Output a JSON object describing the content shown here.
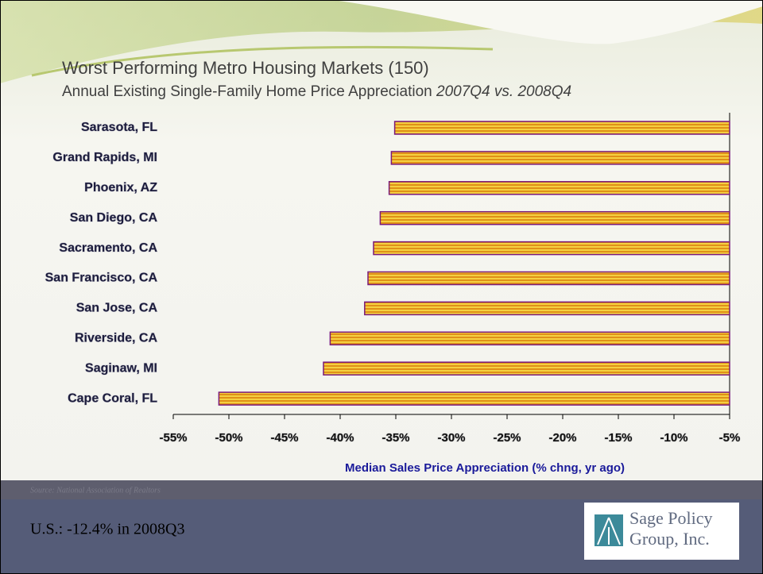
{
  "chart_data": {
    "type": "hbar",
    "title": "Worst Performing Metro Housing Markets (150)",
    "subtitle": "Annual Existing Single-Family Home Price Appreciation",
    "subtitle_period": "2007Q4 vs. 2008Q4",
    "x_label": "Median Sales Price Appreciation (% chng, yr ago)",
    "categories": [
      "Sarasota, FL",
      "Grand Rapids, MI",
      "Phoenix, AZ",
      "San Diego, CA",
      "Sacramento, CA",
      "San Francisco, CA",
      "San Jose, CA",
      "Riverside, CA",
      "Saginaw, MI",
      "Cape Coral, FL"
    ],
    "values": [
      -35.1,
      -35.4,
      -35.6,
      -36.4,
      -37.0,
      -37.5,
      -37.8,
      -40.9,
      -41.5,
      -50.9
    ],
    "color": "#e8a020",
    "xlim": [
      -55,
      -5
    ],
    "xticks": [
      {
        "value": -55,
        "label": "-55%"
      },
      {
        "value": -50,
        "label": "-50%"
      },
      {
        "value": -45,
        "label": "-45%"
      },
      {
        "value": -40,
        "label": "-40%"
      },
      {
        "value": -35,
        "label": "-35%"
      },
      {
        "value": -30,
        "label": "-30%"
      },
      {
        "value": -25,
        "label": "-25%"
      },
      {
        "value": -20,
        "label": "-20%"
      },
      {
        "value": -15,
        "label": "-15%"
      },
      {
        "value": -10,
        "label": "-10%"
      },
      {
        "value": -5,
        "label": "-5%"
      }
    ],
    "grid": false
  },
  "source": "Source: National Association of Realtors",
  "note": "U.S.:  -12.4% in 2008Q3",
  "logo": [
    "Sage Policy",
    "Group, Inc."
  ]
}
